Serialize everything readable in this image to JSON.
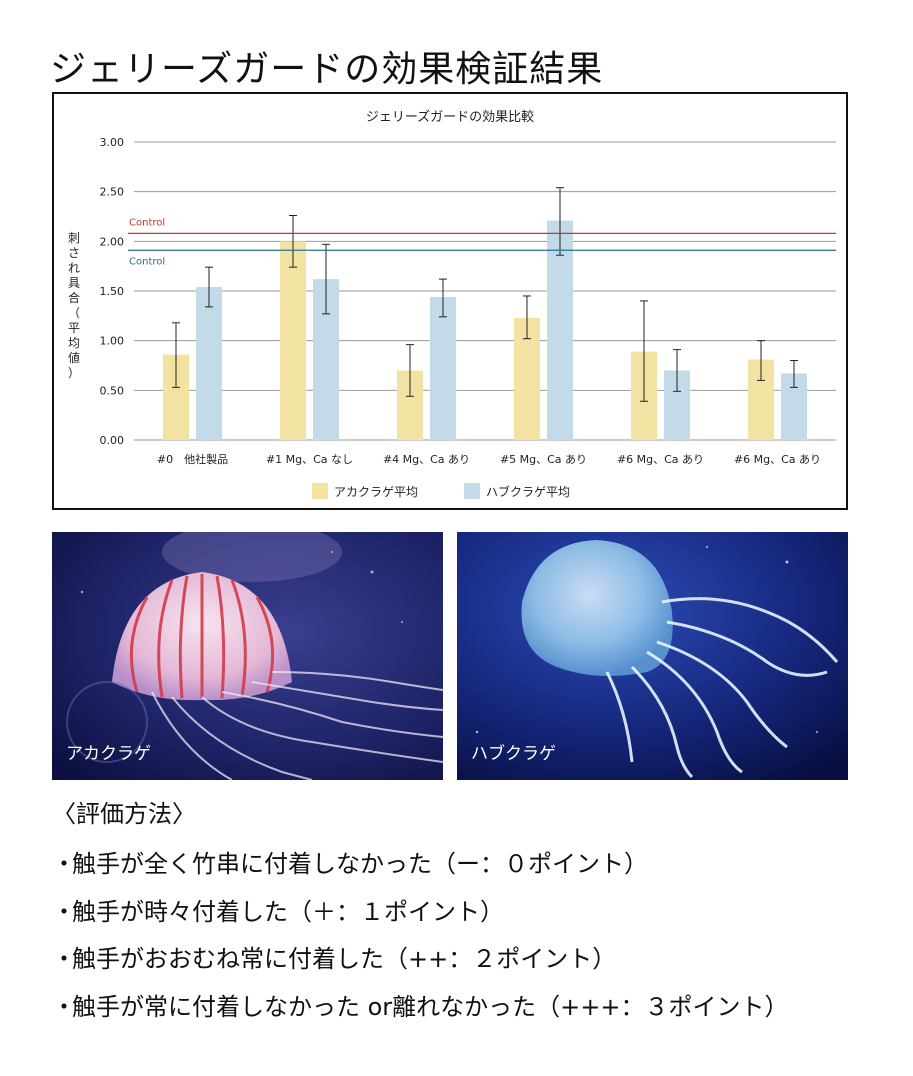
{
  "page_title": "ジェリーズガードの効果検証結果",
  "chart_data": {
    "type": "bar",
    "title": "ジェリーズガードの効果比較",
    "ylabel": "刺され具合（平均値）",
    "xlabel": "",
    "ylim": [
      0,
      3
    ],
    "yticks": [
      "0.00",
      "0.50",
      "1.00",
      "1.50",
      "2.00",
      "2.50",
      "3.00"
    ],
    "categories": [
      "#0　他社製品",
      "#1 Mg、Ca なし",
      "#4 Mg、Ca あり",
      "#5 Mg、Ca あり",
      "#6 Mg、Ca あり",
      "#6 Mg、Ca あり"
    ],
    "series": [
      {
        "name": "アカクラゲ平均",
        "color": "#f3e3a3",
        "values": [
          0.86,
          2.0,
          0.7,
          1.23,
          0.89,
          0.81
        ],
        "err_low": [
          0.53,
          1.74,
          0.44,
          1.02,
          0.39,
          0.6
        ],
        "err_high": [
          1.18,
          2.26,
          0.96,
          1.45,
          1.4,
          1.0
        ]
      },
      {
        "name": "ハブクラゲ平均",
        "color": "#c3dbe9",
        "values": [
          1.54,
          1.62,
          1.44,
          2.21,
          0.7,
          0.67
        ],
        "err_low": [
          1.34,
          1.27,
          1.24,
          1.86,
          0.49,
          0.53
        ],
        "err_high": [
          1.74,
          1.97,
          1.62,
          2.54,
          0.91,
          0.8
        ]
      }
    ],
    "reference_lines": [
      {
        "label": "Control",
        "value": 2.08,
        "color": "#c0392b"
      },
      {
        "label": "Control",
        "value": 1.91,
        "color": "#2a6f97"
      }
    ],
    "grid": true,
    "legend_position": "bottom"
  },
  "photos": [
    {
      "label": "アカクラゲ"
    },
    {
      "label": "ハブクラゲ"
    }
  ],
  "evaluation": {
    "heading": "〈評価方法〉",
    "bullet": "・",
    "items": [
      "触手が全く竹串に付着しなかった（ー：０ポイント）",
      "触手が時々付着した（＋：１ポイント）",
      "触手がおおむね常に付着した（++：２ポイント）",
      "触手が常に付着しなかった or離れなかった（+++：３ポイント）"
    ]
  }
}
